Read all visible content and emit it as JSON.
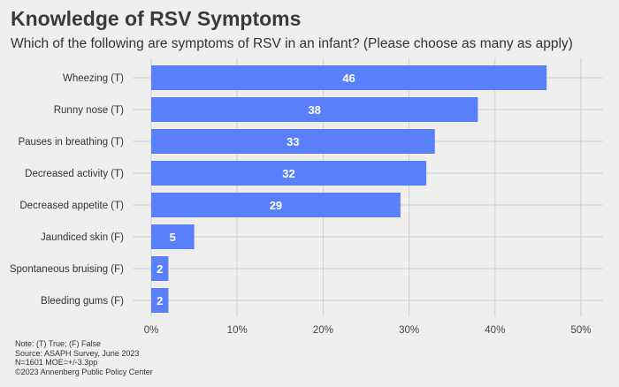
{
  "chart_data": {
    "type": "bar",
    "orientation": "horizontal",
    "title": "Knowledge of RSV Symptoms",
    "subtitle": "Which of the following are symptoms of RSV in an infant? (Please choose as many as apply)",
    "categories": [
      "Wheezing (T)",
      "Runny nose (T)",
      "Pauses in breathing (T)",
      "Decreased activity (T)",
      "Decreased appetite (T)",
      "Jaundiced skin (F)",
      "Spontaneous bruising (F)",
      "Bleeding gums (F)"
    ],
    "values": [
      46,
      38,
      33,
      32,
      29,
      5,
      2,
      2
    ],
    "xlim": [
      0,
      50
    ],
    "xticks": [
      "0%",
      "10%",
      "20%",
      "30%",
      "40%",
      "50%"
    ],
    "grid": true,
    "bar_color": "#5a7ffa",
    "label_color": "#ffffff"
  },
  "notes": [
    "Note: (T) True; (F) False",
    "Source: ASAPH Survey, June 2023",
    "N=1601 MOE=+/-3.3pp",
    "©2023 Annenberg Public Policy Center"
  ]
}
